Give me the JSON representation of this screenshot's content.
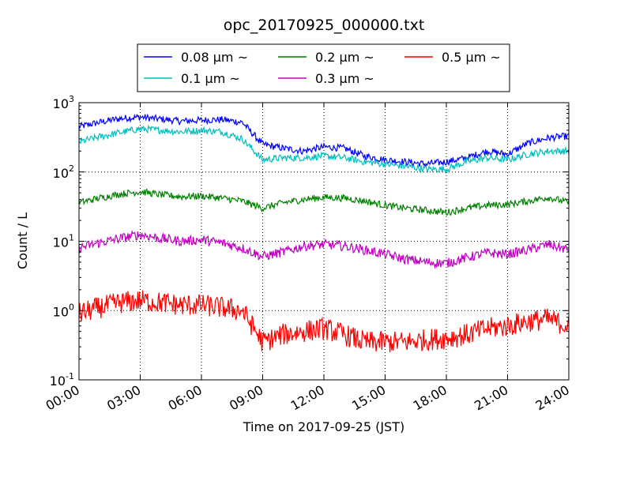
{
  "chart_data": {
    "type": "line",
    "title": "opc_20170925_000000.txt",
    "xlabel": "Time on 2017-09-25 (JST)",
    "ylabel": "Count / L",
    "y_scale": "log",
    "ylim": [
      0.1,
      1000
    ],
    "xlim": [
      "2017-09-25 00:00",
      "2017-09-26 00:00"
    ],
    "x_ticks": [
      "00:00",
      "03:00",
      "06:00",
      "09:00",
      "12:00",
      "15:00",
      "18:00",
      "21:00",
      "24:00"
    ],
    "y_ticks": [
      {
        "base": "10",
        "exp": "-1"
      },
      {
        "base": "10",
        "exp": "0"
      },
      {
        "base": "10",
        "exp": "1"
      },
      {
        "base": "10",
        "exp": "2"
      },
      {
        "base": "10",
        "exp": "3"
      }
    ],
    "grid": true,
    "legend_position": "top, outside plot",
    "x": [
      "00:00",
      "01:00",
      "02:00",
      "03:00",
      "04:00",
      "05:00",
      "06:00",
      "07:00",
      "08:00",
      "09:00",
      "10:00",
      "11:00",
      "12:00",
      "13:00",
      "14:00",
      "15:00",
      "16:00",
      "17:00",
      "18:00",
      "19:00",
      "20:00",
      "21:00",
      "22:00",
      "23:00",
      "24:00"
    ],
    "series": [
      {
        "name": "0.08 μm ~",
        "color": "#0000ff",
        "values": [
          450,
          520,
          590,
          620,
          580,
          540,
          560,
          570,
          520,
          250,
          220,
          200,
          230,
          220,
          170,
          150,
          140,
          130,
          140,
          160,
          200,
          180,
          260,
          310,
          330
        ]
      },
      {
        "name": "0.1 μm ~",
        "color": "#00bfbf",
        "values": [
          270,
          320,
          370,
          420,
          400,
          380,
          400,
          380,
          300,
          150,
          160,
          160,
          170,
          160,
          140,
          130,
          120,
          110,
          110,
          140,
          160,
          150,
          180,
          200,
          200
        ]
      },
      {
        "name": "0.2 μm ~",
        "color": "#008000",
        "values": [
          36,
          42,
          48,
          52,
          47,
          44,
          45,
          42,
          38,
          30,
          36,
          40,
          43,
          42,
          38,
          33,
          30,
          28,
          26,
          30,
          33,
          34,
          38,
          43,
          36
        ]
      },
      {
        "name": "0.3 μm ~",
        "color": "#bf00bf",
        "values": [
          8,
          9.5,
          11,
          12.5,
          11,
          10,
          10.5,
          9.5,
          8,
          6,
          7,
          8.5,
          9,
          8.5,
          7.5,
          6.5,
          5.5,
          5,
          4.8,
          5.8,
          6.8,
          6.5,
          7.5,
          9,
          7.5
        ]
      },
      {
        "name": "0.5 μm ~",
        "color": "#ff0000",
        "values": [
          0.9,
          1.1,
          1.3,
          1.4,
          1.3,
          1.2,
          1.2,
          1.1,
          1.0,
          0.35,
          0.45,
          0.5,
          0.55,
          0.45,
          0.35,
          0.35,
          0.35,
          0.38,
          0.4,
          0.45,
          0.55,
          0.6,
          0.7,
          0.75,
          0.6
        ]
      }
    ]
  }
}
